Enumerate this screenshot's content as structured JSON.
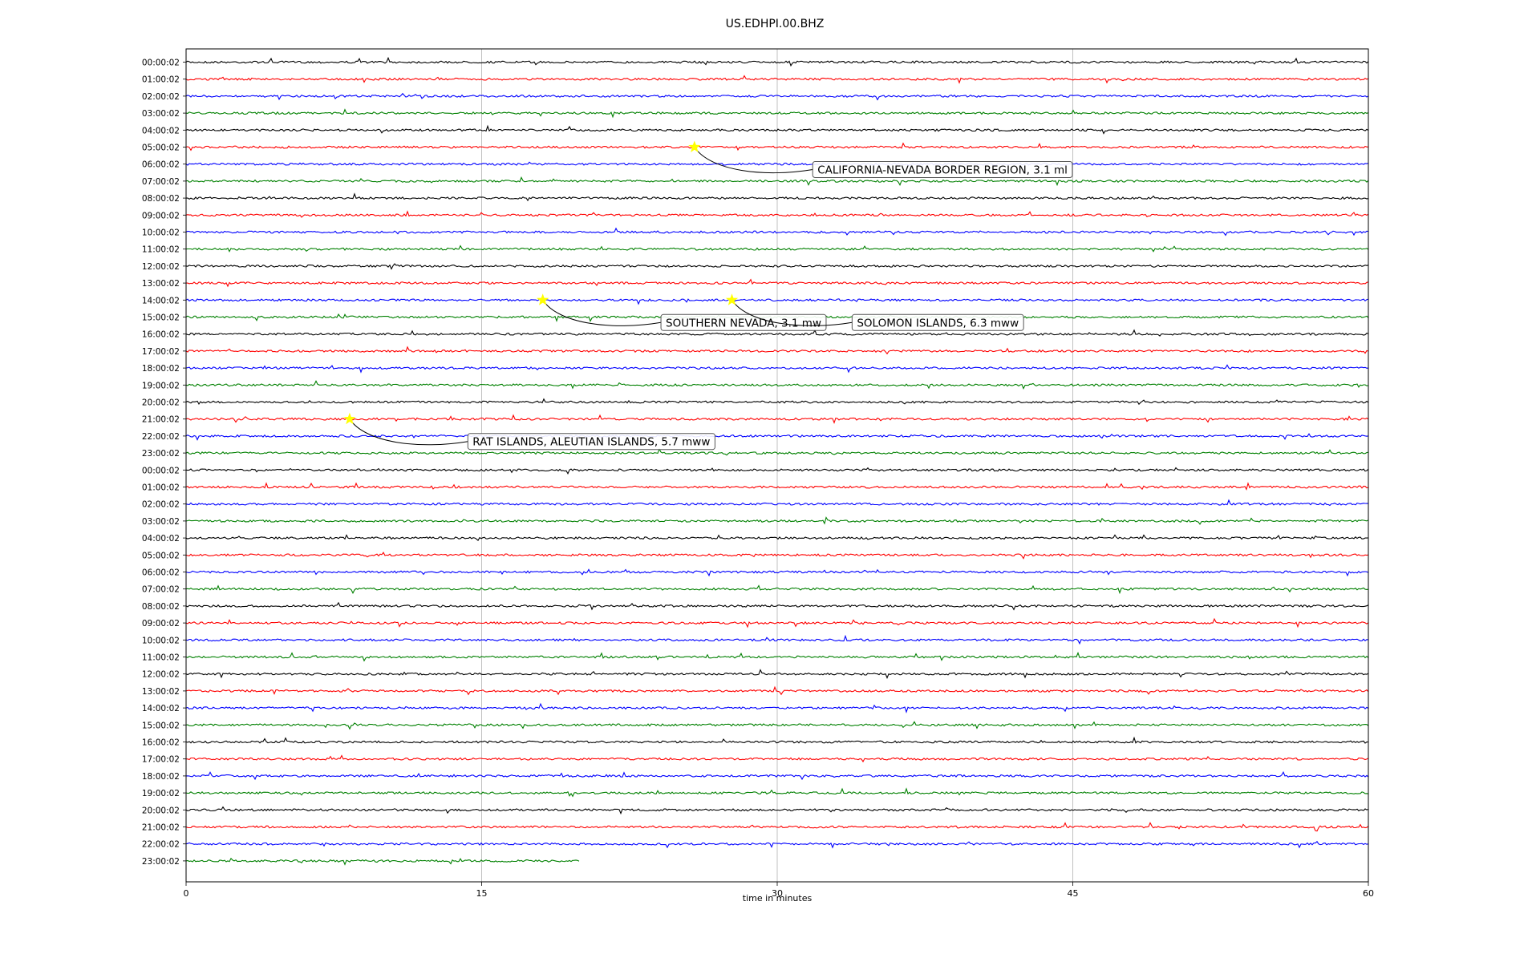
{
  "chart_data": {
    "type": "line",
    "title": "US.EDHPI.00.BHZ",
    "xlabel": "time in minutes",
    "ylabel": "",
    "xlim": [
      0,
      60
    ],
    "x_ticks": [
      0,
      15,
      30,
      45,
      60
    ],
    "grid": "vertical",
    "trace_colors": [
      "#000000",
      "#ff0000",
      "#0000ff",
      "#008000"
    ],
    "row_labels": [
      "00:00:02",
      "01:00:02",
      "02:00:02",
      "03:00:02",
      "04:00:02",
      "05:00:02",
      "06:00:02",
      "07:00:02",
      "08:00:02",
      "09:00:02",
      "10:00:02",
      "11:00:02",
      "12:00:02",
      "13:00:02",
      "14:00:02",
      "15:00:02",
      "16:00:02",
      "17:00:02",
      "18:00:02",
      "19:00:02",
      "20:00:02",
      "21:00:02",
      "22:00:02",
      "23:00:02",
      "00:00:02",
      "01:00:02",
      "02:00:02",
      "03:00:02",
      "04:00:02",
      "05:00:02",
      "06:00:02",
      "07:00:02",
      "08:00:02",
      "09:00:02",
      "10:00:02",
      "11:00:02",
      "12:00:02",
      "13:00:02",
      "14:00:02",
      "15:00:02",
      "16:00:02",
      "17:00:02",
      "18:00:02",
      "19:00:02",
      "20:00:02",
      "21:00:02",
      "22:00:02",
      "23:00:02"
    ],
    "last_row_end_minute": 20,
    "event_marker_color": "#ffff00",
    "events": [
      {
        "label": "CALIFORNIA-NEVADA BORDER REGION, 3.1 ml",
        "row": 5,
        "minute": 25.8,
        "label_minute": 31.8
      },
      {
        "label": "SOUTHERN NEVADA, 3.1 mw",
        "row": 14,
        "minute": 18.1,
        "label_minute": 24.1
      },
      {
        "label": "SOLOMON ISLANDS, 6.3 mww",
        "row": 14,
        "minute": 27.7,
        "label_minute": 33.8
      },
      {
        "label": "RAT ISLANDS, ALEUTIAN ISLANDS, 5.7 mww",
        "row": 21,
        "minute": 8.3,
        "label_minute": 14.3
      }
    ]
  }
}
